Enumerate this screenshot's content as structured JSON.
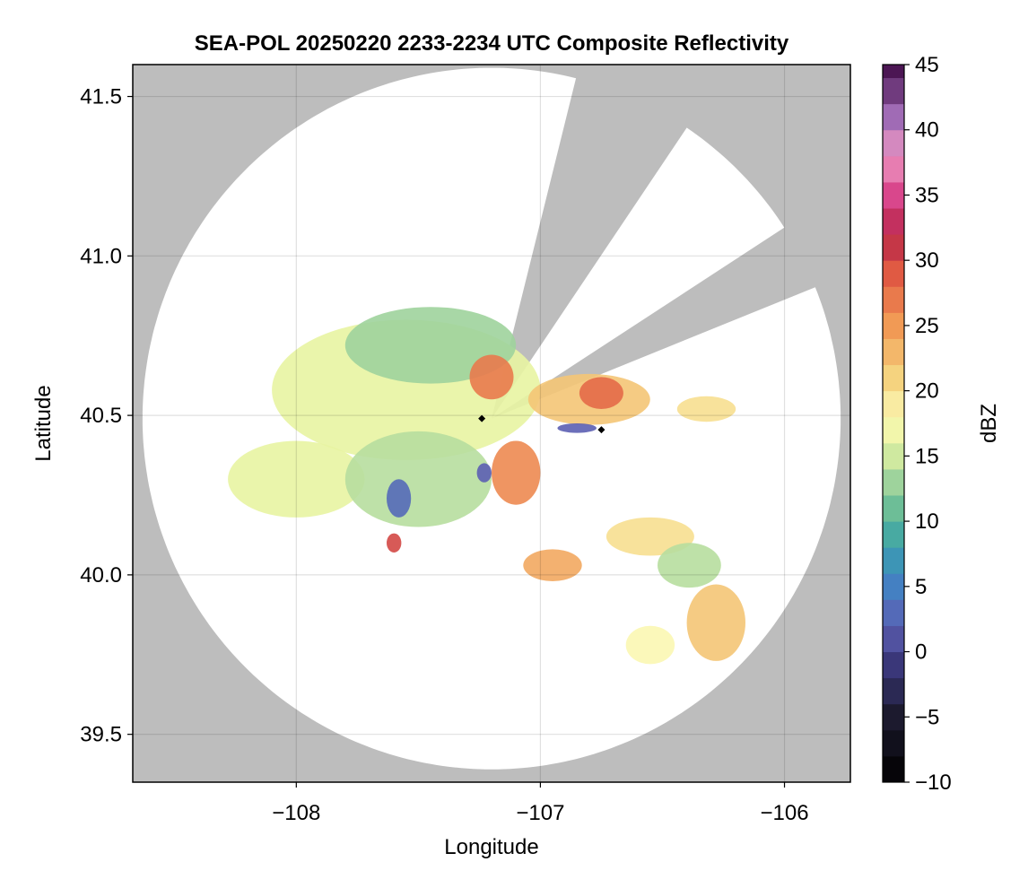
{
  "chart_data": {
    "type": "heatmap",
    "title": "SEA-POL 20250220 2233-2234 UTC Composite Reflectivity",
    "xlabel": "Longitude",
    "ylabel": "Latitude",
    "xlim": [
      -108.67,
      -105.73
    ],
    "ylim": [
      39.35,
      41.6
    ],
    "xticks": [
      -108,
      -107,
      -106
    ],
    "xtick_labels": [
      "−108",
      "−107",
      "−106"
    ],
    "yticks": [
      39.5,
      40.0,
      40.5,
      41.0,
      41.5
    ],
    "ytick_labels": [
      "39.5",
      "40.0",
      "40.5",
      "41.0",
      "41.5"
    ],
    "grid": true,
    "radar_site": {
      "lon": -107.2,
      "lat": 40.49
    },
    "radar_range_deg_lon": 1.43,
    "radar_range_deg_lat": 1.1,
    "blocked_sectors_deg": [
      [
        14,
        34
      ],
      [
        57,
        68
      ]
    ],
    "missing_data_color": "#bdbdbd",
    "markers": [
      {
        "name": "black-diamond-1",
        "lon": -107.24,
        "lat": 40.49
      },
      {
        "name": "black-diamond-2",
        "lon": -106.75,
        "lat": 40.455
      }
    ],
    "echo_regions": [
      {
        "name": "northwest-stratiform",
        "lon": -107.55,
        "lat": 40.58,
        "rlon": 0.55,
        "rlat": 0.22,
        "dbz": 16
      },
      {
        "name": "northwest-upper-band",
        "lon": -107.45,
        "lat": 40.72,
        "rlon": 0.35,
        "rlat": 0.12,
        "dbz": 13
      },
      {
        "name": "north-core",
        "lon": -107.2,
        "lat": 40.62,
        "rlon": 0.09,
        "rlat": 0.07,
        "dbz": 27
      },
      {
        "name": "northeast-sector",
        "lon": -106.8,
        "lat": 40.55,
        "rlon": 0.25,
        "rlat": 0.08,
        "dbz": 22
      },
      {
        "name": "northeast-core",
        "lon": -106.75,
        "lat": 40.57,
        "rlon": 0.09,
        "rlat": 0.05,
        "dbz": 28
      },
      {
        "name": "east-clutter",
        "lon": -106.32,
        "lat": 40.52,
        "rlon": 0.12,
        "rlat": 0.04,
        "dbz": 20
      },
      {
        "name": "east-low-returns",
        "lon": -106.85,
        "lat": 40.46,
        "rlon": 0.08,
        "rlat": 0.015,
        "dbz": 2
      },
      {
        "name": "west-stratiform",
        "lon": -108.0,
        "lat": 40.3,
        "rlon": 0.28,
        "rlat": 0.12,
        "dbz": 16
      },
      {
        "name": "southwest-stratiform",
        "lon": -107.5,
        "lat": 40.3,
        "rlon": 0.3,
        "rlat": 0.15,
        "dbz": 14
      },
      {
        "name": "southwest-weak-echo",
        "lon": -107.58,
        "lat": 40.24,
        "rlon": 0.05,
        "rlat": 0.06,
        "dbz": 3
      },
      {
        "name": "south-core",
        "lon": -107.1,
        "lat": 40.32,
        "rlon": 0.1,
        "rlat": 0.1,
        "dbz": 26
      },
      {
        "name": "south-weak-echo",
        "lon": -107.23,
        "lat": 40.32,
        "rlon": 0.03,
        "rlat": 0.03,
        "dbz": 2
      },
      {
        "name": "southwest-cell",
        "lon": -107.6,
        "lat": 40.1,
        "rlon": 0.03,
        "rlat": 0.03,
        "dbz": 30
      },
      {
        "name": "southeast-band",
        "lon": -106.55,
        "lat": 40.12,
        "rlon": 0.18,
        "rlat": 0.06,
        "dbz": 20
      },
      {
        "name": "southeast-flat-echo",
        "lon": -106.39,
        "lat": 40.03,
        "rlon": 0.13,
        "rlat": 0.07,
        "dbz": 14
      },
      {
        "name": "southeast-cells",
        "lon": -106.28,
        "lat": 39.85,
        "rlon": 0.12,
        "rlat": 0.12,
        "dbz": 22
      },
      {
        "name": "south-cells",
        "lon": -106.95,
        "lat": 40.03,
        "rlon": 0.12,
        "rlat": 0.05,
        "dbz": 24
      },
      {
        "name": "far-south-echo",
        "lon": -106.55,
        "lat": 39.78,
        "rlon": 0.1,
        "rlat": 0.06,
        "dbz": 18
      }
    ],
    "colorbar": {
      "label": "dBZ",
      "min": -10,
      "max": 45,
      "step": 2,
      "ticks": [
        -10,
        -5,
        0,
        5,
        10,
        15,
        20,
        25,
        30,
        35,
        40,
        45
      ],
      "tick_labels": [
        "−10",
        "−5",
        "0",
        "5",
        "10",
        "15",
        "20",
        "25",
        "30",
        "35",
        "40",
        "45"
      ],
      "colormap_stops": [
        {
          "v": -10,
          "c": "#000000"
        },
        {
          "v": -5,
          "c": "#1c1a2e"
        },
        {
          "v": -1,
          "c": "#3a3779"
        },
        {
          "v": 2,
          "c": "#5c5fb3"
        },
        {
          "v": 5,
          "c": "#4480c2"
        },
        {
          "v": 8,
          "c": "#3aa0b0"
        },
        {
          "v": 10,
          "c": "#55b394"
        },
        {
          "v": 13,
          "c": "#9ed39c"
        },
        {
          "v": 16,
          "c": "#e8f4a2"
        },
        {
          "v": 18,
          "c": "#fbf7b3"
        },
        {
          "v": 21,
          "c": "#f5d37f"
        },
        {
          "v": 25,
          "c": "#f19a55"
        },
        {
          "v": 29,
          "c": "#e05a43"
        },
        {
          "v": 32,
          "c": "#b82549"
        },
        {
          "v": 35,
          "c": "#d9478c"
        },
        {
          "v": 38,
          "c": "#ee98c4"
        },
        {
          "v": 41,
          "c": "#a06bb5"
        },
        {
          "v": 45,
          "c": "#400a46"
        }
      ]
    }
  }
}
